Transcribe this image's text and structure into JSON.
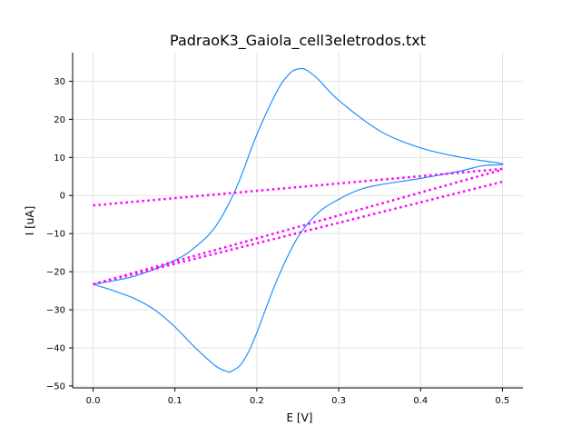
{
  "chart_data": {
    "type": "line",
    "title": "PadraoK3_Gaiola_cell3eletrodos.txt",
    "xlabel": "E [V]",
    "ylabel": "I [uA]",
    "xlim": [
      -0.025,
      0.525
    ],
    "ylim": [
      -50.5,
      37.5
    ],
    "xticks": [
      0.0,
      0.1,
      0.2,
      0.3,
      0.4,
      0.5
    ],
    "xtick_labels": [
      "0.0",
      "0.1",
      "0.2",
      "0.3",
      "0.4",
      "0.5"
    ],
    "yticks": [
      -50,
      -40,
      -30,
      -20,
      -10,
      0,
      10,
      20,
      30
    ],
    "ytick_labels": [
      "−50",
      "−40",
      "−30",
      "−20",
      "−10",
      "0",
      "10",
      "20",
      "30"
    ],
    "grid": true,
    "colors": {
      "cv": "#1e90ff",
      "baseline": "#ff00ff"
    },
    "series": [
      {
        "style": "solid",
        "color": "#1e90ff",
        "x": [
          0.0,
          0.05,
          0.1,
          0.125,
          0.15,
          0.175,
          0.2,
          0.225,
          0.24,
          0.25,
          0.26,
          0.275,
          0.3,
          0.35,
          0.4,
          0.45,
          0.5,
          0.475,
          0.45,
          0.4,
          0.35,
          0.325,
          0.3,
          0.275,
          0.25,
          0.225,
          0.2,
          0.19,
          0.18,
          0.17,
          0.165,
          0.15,
          0.125,
          0.1,
          0.075,
          0.05,
          0.025,
          0.0
        ],
        "y": [
          -23.3,
          -21.2,
          -17.0,
          -13.5,
          -8.0,
          2.0,
          16.0,
          27.5,
          32.0,
          33.2,
          33.0,
          30.5,
          25.0,
          17.0,
          12.5,
          10.0,
          8.3,
          7.8,
          6.5,
          4.5,
          2.8,
          1.5,
          -1.0,
          -4.5,
          -11.0,
          -22.0,
          -36.0,
          -41.0,
          -44.5,
          -46.0,
          -46.3,
          -44.8,
          -40.0,
          -34.5,
          -30.0,
          -27.0,
          -25.0,
          -23.3
        ]
      },
      {
        "style": "dotted",
        "color": "#ff00ff",
        "x": [
          0.0,
          0.5
        ],
        "y": [
          -2.6,
          7.0
        ]
      },
      {
        "style": "dotted",
        "color": "#ff00ff",
        "x": [
          0.0,
          0.5
        ],
        "y": [
          -23.3,
          3.6
        ]
      },
      {
        "style": "dotted",
        "color": "#ff00ff",
        "x": [
          0.0,
          0.5
        ],
        "y": [
          -23.3,
          6.8
        ]
      }
    ]
  }
}
